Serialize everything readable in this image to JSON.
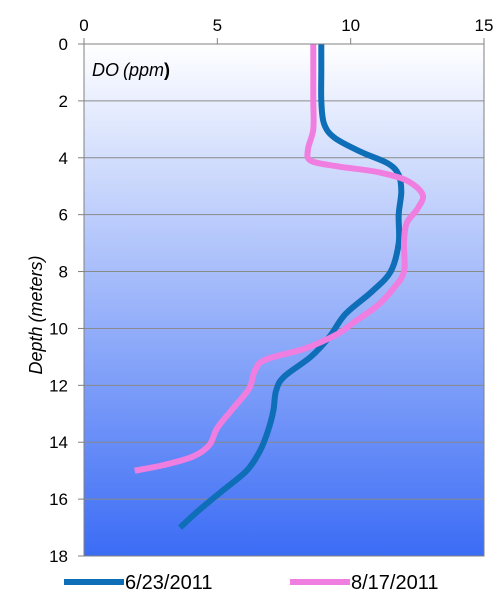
{
  "chart_data": {
    "type": "line",
    "orientation": "depth-profile",
    "title": "",
    "plot_label": {
      "prefix": "DO",
      "unit": "(ppm",
      "suffix": ")"
    },
    "xlabel": "",
    "ylabel": {
      "word": "Depth",
      "unit": "(meters)"
    },
    "xlim": [
      0,
      15
    ],
    "ylim": [
      0,
      18
    ],
    "y_inverted": true,
    "x_axis_position": "top",
    "x_ticks": [
      0,
      5,
      10,
      15
    ],
    "y_ticks": [
      0,
      2,
      4,
      6,
      8,
      10,
      12,
      14,
      16,
      18
    ],
    "grid": {
      "horizontal": true,
      "vertical": false
    },
    "legend_position": "bottom",
    "background_gradient": [
      "#ffffff",
      "#3b6cf5"
    ],
    "series": [
      {
        "name": "6/23/2011",
        "color": "#0e6eb8",
        "points": [
          {
            "do": 8.9,
            "depth": 0
          },
          {
            "do": 8.9,
            "depth": 1
          },
          {
            "do": 8.9,
            "depth": 2
          },
          {
            "do": 9.0,
            "depth": 2.8
          },
          {
            "do": 9.4,
            "depth": 3.3
          },
          {
            "do": 10.4,
            "depth": 3.8
          },
          {
            "do": 11.4,
            "depth": 4.2
          },
          {
            "do": 11.8,
            "depth": 4.6
          },
          {
            "do": 11.9,
            "depth": 5.2
          },
          {
            "do": 11.8,
            "depth": 6
          },
          {
            "do": 11.8,
            "depth": 7
          },
          {
            "do": 11.5,
            "depth": 8
          },
          {
            "do": 10.8,
            "depth": 8.7
          },
          {
            "do": 9.8,
            "depth": 9.5
          },
          {
            "do": 9.2,
            "depth": 10.3
          },
          {
            "do": 8.5,
            "depth": 11
          },
          {
            "do": 7.5,
            "depth": 11.7
          },
          {
            "do": 7.2,
            "depth": 12.2
          },
          {
            "do": 7.1,
            "depth": 12.9
          },
          {
            "do": 6.9,
            "depth": 13.6
          },
          {
            "do": 6.6,
            "depth": 14.3
          },
          {
            "do": 6.1,
            "depth": 15
          },
          {
            "do": 5.2,
            "depth": 15.7
          },
          {
            "do": 4.3,
            "depth": 16.4
          },
          {
            "do": 3.6,
            "depth": 17
          }
        ]
      },
      {
        "name": "8/17/2011",
        "color": "#f07ee0",
        "points": [
          {
            "do": 8.6,
            "depth": 0
          },
          {
            "do": 8.6,
            "depth": 1
          },
          {
            "do": 8.6,
            "depth": 2
          },
          {
            "do": 8.6,
            "depth": 3
          },
          {
            "do": 8.4,
            "depth": 3.7
          },
          {
            "do": 8.5,
            "depth": 4.1
          },
          {
            "do": 9.5,
            "depth": 4.3
          },
          {
            "do": 11.0,
            "depth": 4.5
          },
          {
            "do": 12.1,
            "depth": 4.8
          },
          {
            "do": 12.7,
            "depth": 5.3
          },
          {
            "do": 12.5,
            "depth": 5.8
          },
          {
            "do": 12.1,
            "depth": 6.3
          },
          {
            "do": 12.0,
            "depth": 7
          },
          {
            "do": 12.0,
            "depth": 8
          },
          {
            "do": 11.6,
            "depth": 8.6
          },
          {
            "do": 11.0,
            "depth": 9.2
          },
          {
            "do": 10.1,
            "depth": 9.8
          },
          {
            "do": 9.5,
            "depth": 10.2
          },
          {
            "do": 8.3,
            "depth": 10.7
          },
          {
            "do": 6.8,
            "depth": 11.1
          },
          {
            "do": 6.4,
            "depth": 11.5
          },
          {
            "do": 6.2,
            "depth": 12.1
          },
          {
            "do": 5.6,
            "depth": 12.8
          },
          {
            "do": 5.0,
            "depth": 13.5
          },
          {
            "do": 4.7,
            "depth": 14.1
          },
          {
            "do": 4.1,
            "depth": 14.5
          },
          {
            "do": 3.0,
            "depth": 14.8
          },
          {
            "do": 1.9,
            "depth": 15.0
          }
        ]
      }
    ]
  }
}
